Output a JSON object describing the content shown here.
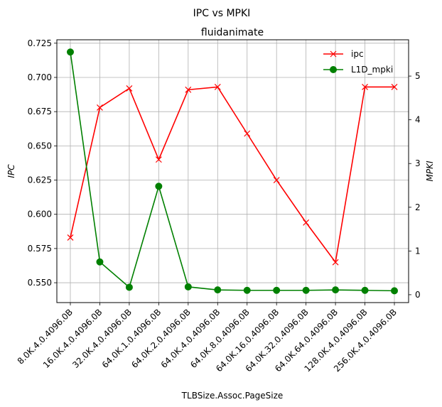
{
  "chart_data": {
    "type": "line",
    "suptitle": "IPC vs MPKI",
    "title": "fluidanimate",
    "xlabel": "TLBSize.Assoc.PageSize",
    "ylabel_left": "IPC",
    "ylabel_right": "MPKI",
    "categories": [
      "8.0K.4.0.4096.0B",
      "16.0K.4.0.4096.0B",
      "32.0K.4.0.4096.0B",
      "64.0K.1.0.4096.0B",
      "64.0K.2.0.4096.0B",
      "64.0K.4.0.4096.0B",
      "64.0K.8.0.4096.0B",
      "64.0K.16.0.4096.0B",
      "64.0K.32.0.4096.0B",
      "64.0K.64.0.4096.0B",
      "128.0K.4.0.4096.0B",
      "256.0K.4.0.4096.0B"
    ],
    "series": [
      {
        "name": "ipc",
        "axis": "left",
        "color": "#ff0000",
        "marker": "x",
        "values": [
          0.583,
          0.678,
          0.692,
          0.64,
          0.691,
          0.693,
          0.659,
          0.625,
          0.594,
          0.565,
          0.693,
          0.693
        ]
      },
      {
        "name": "L1D_mpki",
        "axis": "right",
        "color": "#008000",
        "marker": "o",
        "values": [
          5.55,
          0.75,
          0.17,
          2.48,
          0.18,
          0.11,
          0.1,
          0.1,
          0.1,
          0.11,
          0.1,
          0.09
        ]
      }
    ],
    "ylim_left": [
      0.5355,
      0.7275
    ],
    "ylim_right": [
      -0.18,
      5.83
    ],
    "yticks_left": [
      "0.550",
      "0.575",
      "0.600",
      "0.625",
      "0.650",
      "0.675",
      "0.700",
      "0.725"
    ],
    "yticks_right": [
      "0",
      "1",
      "2",
      "3",
      "4",
      "5"
    ],
    "grid": true,
    "legend_position": "top-right"
  }
}
